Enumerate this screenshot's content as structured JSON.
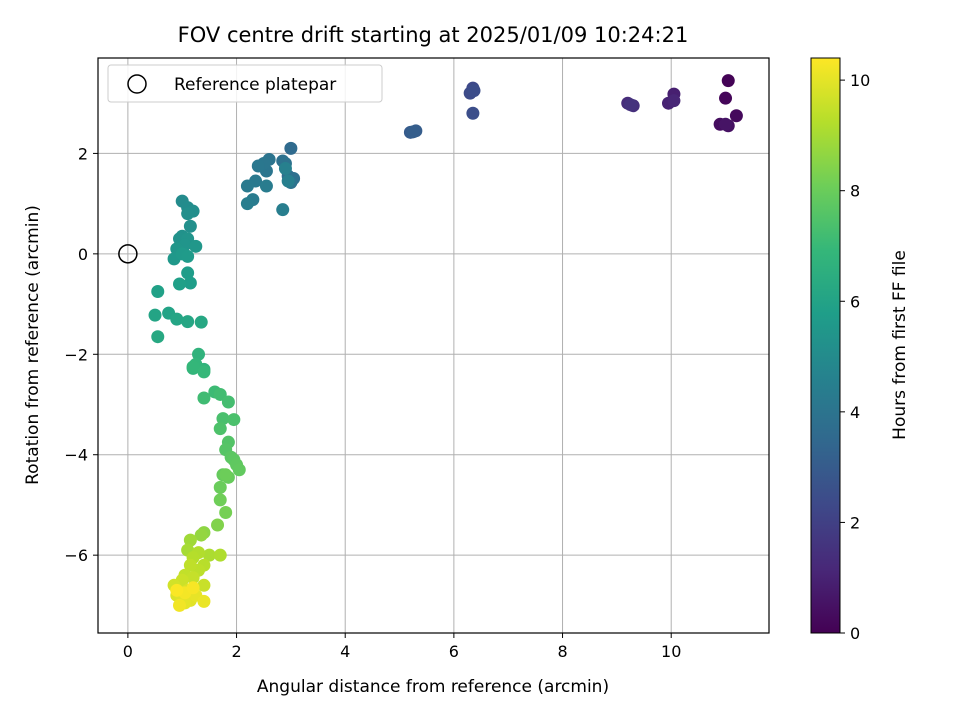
{
  "chart_data": {
    "type": "scatter",
    "title": "FOV centre drift starting at 2025/01/09 10:24:21",
    "xlabel": "Angular distance from reference (arcmin)",
    "ylabel": "Rotation from reference (arcmin)",
    "xlim": [
      -0.55,
      11.8
    ],
    "ylim": [
      -7.55,
      3.9
    ],
    "xticks": [
      0,
      2,
      4,
      6,
      8,
      10
    ],
    "yticks": [
      -6,
      -4,
      -2,
      0,
      2
    ],
    "grid": true,
    "legend": {
      "placement": "top-left",
      "entries": [
        {
          "label": "Reference platepar",
          "marker": "open-circle"
        }
      ]
    },
    "reference_point": {
      "x": 0,
      "y": 0
    },
    "colorbar": {
      "label": "Hours from first FF file",
      "range": [
        0,
        10.4
      ],
      "ticks": [
        0,
        2,
        4,
        6,
        8,
        10
      ],
      "colormap": [
        "#440154",
        "#482878",
        "#3e4989",
        "#31688e",
        "#26828e",
        "#1f9e89",
        "#35b779",
        "#6ece58",
        "#b5de2b",
        "#fde725"
      ]
    },
    "series": [
      {
        "points": [
          [
            11.05,
            3.45,
            0.05
          ],
          [
            11.0,
            3.1,
            0.15
          ],
          [
            11.2,
            2.75,
            0.25
          ],
          [
            10.9,
            2.58,
            0.35
          ],
          [
            11.05,
            2.55,
            0.45
          ],
          [
            11.0,
            2.58,
            0.55
          ],
          [
            10.05,
            3.18,
            0.9
          ],
          [
            9.95,
            3.0,
            1.0
          ],
          [
            10.05,
            3.05,
            1.1
          ],
          [
            9.2,
            3.0,
            1.3
          ],
          [
            9.3,
            2.95,
            1.4
          ],
          [
            9.25,
            2.97,
            1.5
          ],
          [
            6.35,
            3.3,
            2.3
          ],
          [
            6.3,
            3.2,
            2.4
          ],
          [
            6.35,
            2.8,
            2.5
          ],
          [
            6.37,
            3.25,
            2.45
          ],
          [
            5.2,
            2.42,
            3.0
          ],
          [
            5.3,
            2.45,
            3.05
          ],
          [
            5.25,
            2.43,
            3.1
          ],
          [
            3.0,
            2.1,
            3.6
          ],
          [
            2.95,
            1.55,
            3.7
          ],
          [
            3.05,
            1.5,
            3.8
          ],
          [
            2.85,
            1.85,
            3.85
          ],
          [
            2.9,
            1.8,
            3.9
          ],
          [
            3.0,
            1.42,
            3.95
          ],
          [
            2.6,
            1.88,
            4.0
          ],
          [
            2.55,
            1.65,
            4.05
          ],
          [
            2.5,
            1.8,
            4.1
          ],
          [
            2.4,
            1.75,
            4.15
          ],
          [
            2.35,
            1.45,
            4.2
          ],
          [
            2.2,
            1.35,
            4.25
          ],
          [
            2.3,
            1.08,
            4.3
          ],
          [
            2.55,
            1.35,
            4.35
          ],
          [
            2.2,
            1.0,
            4.4
          ],
          [
            2.85,
            0.88,
            4.45
          ],
          [
            2.95,
            1.45,
            4.5
          ],
          [
            2.9,
            1.7,
            4.55
          ],
          [
            1.0,
            1.05,
            5.0
          ],
          [
            1.1,
            0.92,
            5.05
          ],
          [
            1.2,
            0.85,
            5.1
          ],
          [
            1.1,
            0.8,
            5.15
          ],
          [
            1.15,
            0.55,
            5.2
          ],
          [
            1.0,
            0.35,
            5.25
          ],
          [
            0.95,
            0.3,
            5.3
          ],
          [
            1.1,
            0.3,
            5.35
          ],
          [
            1.05,
            0.18,
            5.4
          ],
          [
            0.9,
            0.1,
            5.45
          ],
          [
            1.25,
            0.15,
            5.5
          ],
          [
            0.85,
            -0.1,
            5.55
          ],
          [
            1.0,
            0.0,
            5.6
          ],
          [
            1.1,
            -0.05,
            5.65
          ],
          [
            1.1,
            -0.38,
            5.75
          ],
          [
            1.15,
            -0.58,
            5.8
          ],
          [
            0.95,
            -0.6,
            5.85
          ],
          [
            0.55,
            -0.75,
            5.9
          ],
          [
            0.75,
            -1.18,
            6.0
          ],
          [
            0.5,
            -1.22,
            6.05
          ],
          [
            0.9,
            -1.3,
            6.1
          ],
          [
            1.1,
            -1.35,
            6.15
          ],
          [
            1.35,
            -1.36,
            6.2
          ],
          [
            0.55,
            -1.65,
            6.25
          ],
          [
            1.3,
            -2.0,
            6.7
          ],
          [
            1.4,
            -2.3,
            6.75
          ],
          [
            1.2,
            -2.28,
            6.8
          ],
          [
            1.25,
            -2.2,
            6.85
          ],
          [
            1.2,
            -2.25,
            6.9
          ],
          [
            1.4,
            -2.35,
            6.95
          ],
          [
            1.6,
            -2.75,
            7.1
          ],
          [
            1.4,
            -2.87,
            7.15
          ],
          [
            1.7,
            -2.8,
            7.2
          ],
          [
            1.85,
            -2.95,
            7.25
          ],
          [
            1.75,
            -3.28,
            7.35
          ],
          [
            1.95,
            -3.3,
            7.4
          ],
          [
            1.7,
            -3.48,
            7.45
          ],
          [
            1.85,
            -3.75,
            7.55
          ],
          [
            1.8,
            -3.9,
            7.6
          ],
          [
            1.9,
            -4.05,
            7.7
          ],
          [
            1.95,
            -4.1,
            7.75
          ],
          [
            2.0,
            -4.2,
            7.8
          ],
          [
            2.05,
            -4.3,
            7.85
          ],
          [
            1.75,
            -4.4,
            7.9
          ],
          [
            1.85,
            -4.45,
            7.95
          ],
          [
            1.7,
            -4.65,
            8.0
          ],
          [
            1.8,
            -4.4,
            8.05
          ],
          [
            1.7,
            -4.9,
            8.1
          ],
          [
            1.8,
            -5.15,
            8.2
          ],
          [
            1.65,
            -5.4,
            8.4
          ],
          [
            1.4,
            -5.55,
            8.6
          ],
          [
            1.35,
            -5.6,
            8.7
          ],
          [
            1.15,
            -5.7,
            8.9
          ],
          [
            1.1,
            -5.9,
            9.0
          ],
          [
            1.5,
            -6.0,
            9.1
          ],
          [
            1.7,
            -6.0,
            9.15
          ],
          [
            1.3,
            -5.95,
            9.2
          ],
          [
            1.2,
            -6.05,
            9.25
          ],
          [
            1.4,
            -6.2,
            9.3
          ],
          [
            1.3,
            -6.3,
            9.35
          ],
          [
            1.15,
            -6.2,
            9.4
          ],
          [
            1.05,
            -6.4,
            9.45
          ],
          [
            1.2,
            -6.45,
            9.5
          ],
          [
            1.4,
            -6.6,
            9.55
          ],
          [
            1.0,
            -6.5,
            9.6
          ],
          [
            0.85,
            -6.6,
            9.7
          ],
          [
            1.1,
            -6.7,
            9.8
          ],
          [
            0.9,
            -6.8,
            9.85
          ],
          [
            1.0,
            -6.85,
            9.9
          ],
          [
            1.15,
            -6.9,
            9.95
          ],
          [
            1.05,
            -6.95,
            10.0
          ],
          [
            1.25,
            -6.8,
            10.05
          ],
          [
            1.4,
            -6.92,
            10.1
          ],
          [
            0.95,
            -7.0,
            10.2
          ],
          [
            1.05,
            -6.75,
            10.25
          ],
          [
            1.2,
            -6.65,
            10.3
          ],
          [
            0.9,
            -6.7,
            10.35
          ]
        ]
      }
    ]
  }
}
